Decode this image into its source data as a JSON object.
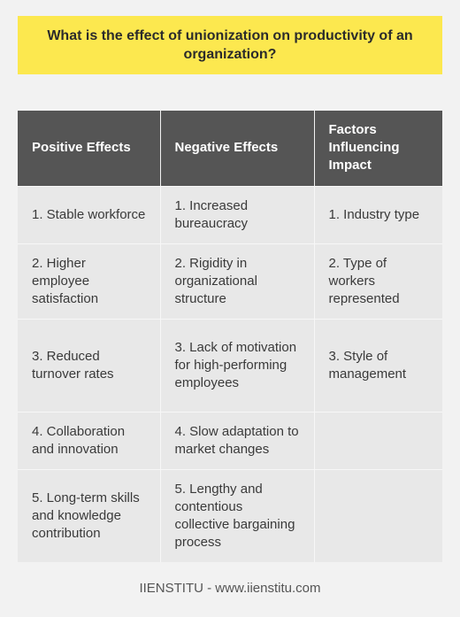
{
  "title": "What is the effect of unionization on productivity of an organization?",
  "table": {
    "headers": [
      "Positive Effects",
      "Negative Effects",
      "Factors Influencing Impact"
    ],
    "rows": [
      [
        "1. Stable workforce",
        "1. Increased bureaucracy",
        "1. Industry type"
      ],
      [
        "2. Higher employee satisfaction",
        "2. Rigidity in organizational structure",
        "2. Type of workers represented"
      ],
      [
        "3. Reduced turnover rates",
        "3. Lack of motivation for high-performing employees",
        "3. Style of management"
      ],
      [
        "4. Collaboration and innovation",
        "4. Slow adaptation to market changes",
        ""
      ],
      [
        "5. Long-term skills and knowledge contribution",
        "5. Lengthy and contentious collective bargaining process",
        ""
      ]
    ]
  },
  "footer": "IIENSTITU - www.iienstitu.com",
  "colors": {
    "title_background": "#fce84f",
    "header_background": "#555555",
    "cell_background": "#e8e8e8",
    "page_background": "#f2f2f2"
  }
}
